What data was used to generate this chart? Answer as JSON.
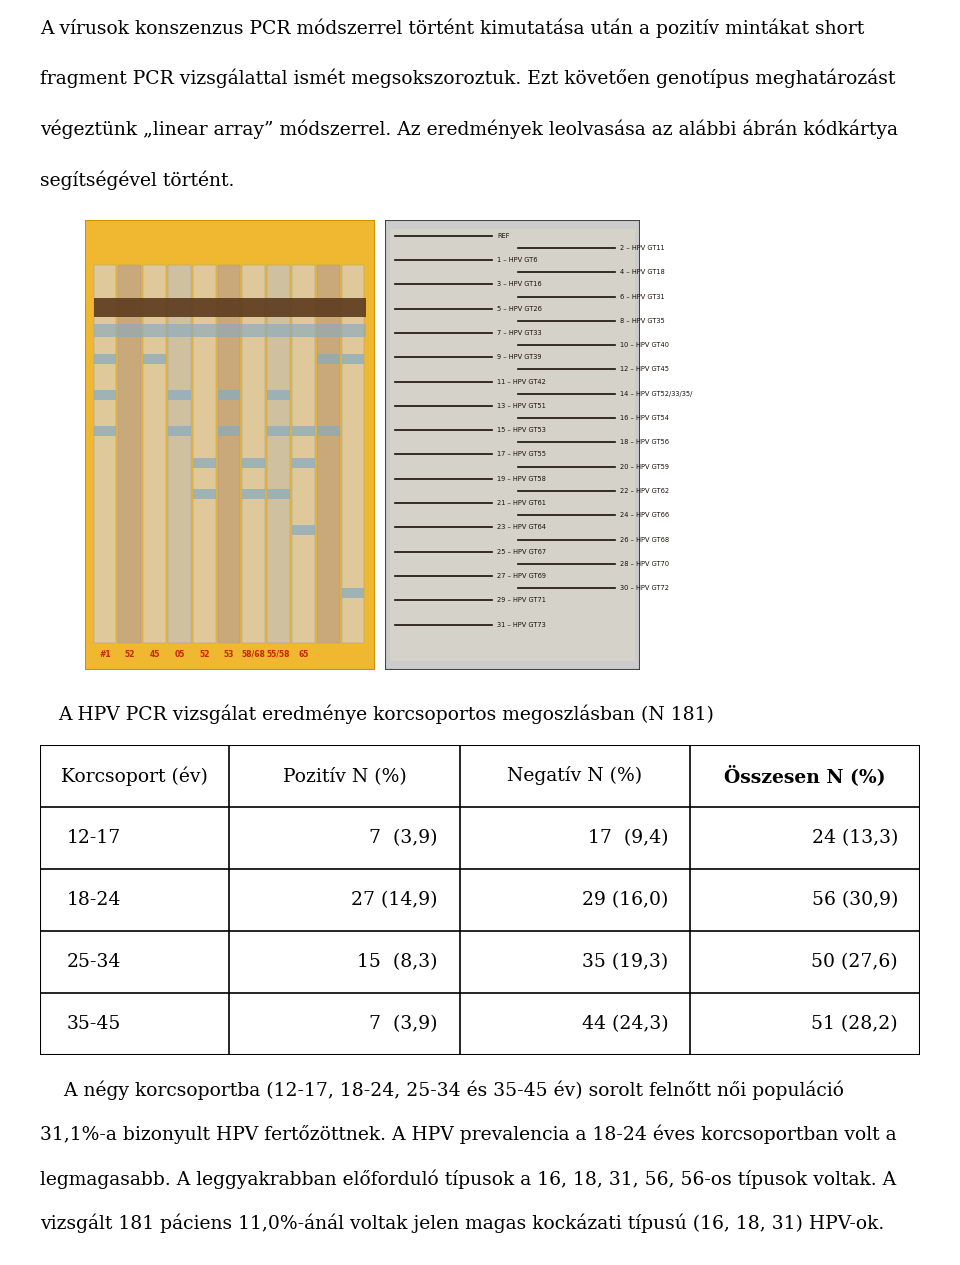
{
  "para1_lines": [
    "A vírusok konszenzus PCR módszerrel történt kimutatása után a pozitív mintákat short",
    "fragment PCR vizsgálattal ismét megsokszoroztuk. Ezt követően genotípus meghatározást",
    "végeztünk „linear array” módszerrel. Az eredmények leolvasása az alábbi ábrán kódkártya",
    "segítségével történt."
  ],
  "table_title": "A HPV PCR vizsgálat eredménye korcsoportos megoszlásban (N 181)",
  "table_headers": [
    "Korcsoport (év)",
    "Pozitív N (%)",
    "Negatív N (%)",
    "Összesen N (%)"
  ],
  "table_data": [
    [
      "12-17",
      "7  (3,9)",
      "17  (9,4)",
      "24 (13,3)"
    ],
    [
      "18-24",
      "27 (14,9)",
      "29 (16,0)",
      "56 (30,9)"
    ],
    [
      "25-34",
      "15  (8,3)",
      "35 (19,3)",
      "50 (27,6)"
    ],
    [
      "35-45",
      "7  (3,9)",
      "44 (24,3)",
      "51 (28,2)"
    ]
  ],
  "para_bottom_lines": [
    "    A négy korcsoportba (12-17, 18-24, 25-34 és 35-45 év) sorolt felnőtt női populáció",
    "31,1%-a bizonyult HPV fertőzöttnek. A HPV prevalencia a 18-24 éves korcsoportban volt a",
    "legmagasabb. A leggyakrabban előforduló típusok a 16, 18, 31, 56, 56-os típusok voltak. A",
    "vizsgált 181 páciens 11,0%-ánál voltak jelen magas kockázati típusú (16, 18, 31) HPV-ok."
  ],
  "bg_color": "#ffffff",
  "text_color": "#000000",
  "font_size_body": 13.5,
  "font_size_table_title": 13.5,
  "font_size_table": 13.5,
  "card_lines_left": [
    "REF",
    "1 – HPV GT6",
    "3 – HPV GT16",
    "5 – HPV GT26",
    "7 – HPV GT33",
    "9 – HPV GT39",
    "11 – HPV GT42",
    "13 – HPV GT51",
    "15 – HPV GT53",
    "17 – HPV GT55",
    "19 – HPV GT58",
    "21 – HPV GT61",
    "23 – HPV GT64",
    "25 – HPV GT67",
    "27 – HPV GT69",
    "29 – HPV GT71",
    "31 – HPV GT73"
  ],
  "card_lines_right": [
    "2 – HPV GT11",
    "4 – HPV GT18",
    "6 – HPV GT31",
    "8 – HPV GT35",
    "10 – HPV GT40",
    "12 – HPV GT45",
    "14 – HPV GT52/33/35/",
    "16 – HPV GT54",
    "18 – HPV GT56",
    "20 – HPV GT59",
    "22 – HPV GT62",
    "24 – HPV GT66",
    "26 – HPV GT68",
    "28 – HPV GT70",
    "30 – HPV GT72"
  ],
  "strip_colors": [
    "#dfc89a",
    "#c9a87a",
    "#dfc89a",
    "#cfc0a0",
    "#dfc89a",
    "#c9a87a",
    "#dfc89a",
    "#cfc0a0",
    "#dfc89a",
    "#c9a87a",
    "#dfc89a"
  ],
  "band_color": "#8aabbf",
  "bottom_label_color": "#cc2200",
  "bottom_labels": [
    "#1",
    "52",
    "45",
    "05",
    "52",
    "53",
    "58/68",
    "55/58",
    "65"
  ]
}
